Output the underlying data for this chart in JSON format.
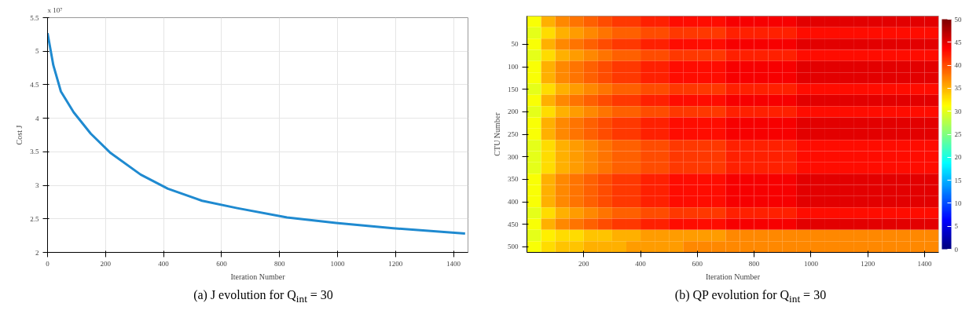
{
  "chart_data": [
    {
      "type": "line",
      "xlabel": "Iteration Number",
      "ylabel": "Cost J",
      "annotations": [
        "x 10⁷",
        "(a) J evolution for Q$_{int}$ = 30"
      ],
      "x": [
        0,
        20,
        46,
        90,
        149,
        218,
        321,
        415,
        533,
        654,
        826,
        995,
        1192,
        1440
      ],
      "series": [
        {
          "color": "#1f8ad0",
          "values": [
            5.27,
            4.79,
            4.4,
            4.09,
            3.77,
            3.48,
            3.16,
            2.95,
            2.77,
            2.66,
            2.52,
            2.44,
            2.36,
            2.28
          ]
        }
      ],
      "xlim": [
        0,
        1450
      ],
      "ylim": [
        2,
        5.5
      ],
      "xticks": [
        0,
        200,
        400,
        600,
        800,
        1000,
        1200,
        1400
      ],
      "yticks": [
        2,
        2.5,
        3,
        3.5,
        4,
        4.5,
        5,
        5.5
      ],
      "grid": true,
      "marker": "none",
      "line_style": "solid"
    },
    {
      "type": "heatmap",
      "xlabel": "Iteration Number",
      "ylabel": "CTU Number",
      "annotations": [
        "(b) QP evolution for Q$_{int}$ = 30"
      ],
      "x": [
        25,
        75,
        125,
        175,
        225,
        275,
        325,
        375,
        425,
        475,
        525,
        575,
        625,
        675,
        725,
        775,
        825,
        875,
        925,
        975,
        1025,
        1075,
        1125,
        1175,
        1225,
        1275,
        1325,
        1375,
        1425
      ],
      "y_categories": [
        null,
        null,
        "50",
        null,
        "100",
        null,
        "150",
        null,
        "200",
        null,
        "250",
        null,
        "300",
        null,
        "350",
        null,
        "400",
        null,
        "450",
        null,
        "500"
      ],
      "cells": [
        [
          31,
          35,
          37,
          38,
          39,
          40,
          41,
          41,
          42,
          42,
          43,
          43,
          43,
          43,
          44,
          44,
          44,
          44,
          44,
          45,
          45,
          45,
          45,
          45,
          45,
          45,
          45,
          45,
          45
        ],
        [
          30,
          33,
          35,
          36,
          37,
          38,
          39,
          39,
          40,
          40,
          41,
          41,
          41,
          41,
          42,
          42,
          42,
          42,
          42,
          43,
          43,
          43,
          43,
          43,
          43,
          43,
          43,
          43,
          43
        ],
        [
          31,
          35,
          37,
          38,
          39,
          40,
          41,
          41,
          42,
          42,
          43,
          43,
          43,
          43,
          44,
          44,
          44,
          44,
          44,
          45,
          45,
          45,
          45,
          45,
          45,
          45,
          45,
          45,
          45
        ],
        [
          30,
          33,
          35,
          36,
          37,
          38,
          39,
          39,
          40,
          40,
          41,
          41,
          41,
          41,
          42,
          42,
          42,
          42,
          42,
          43,
          43,
          43,
          43,
          43,
          43,
          43,
          43,
          43,
          43
        ],
        [
          31,
          35,
          37,
          38,
          39,
          40,
          41,
          41,
          42,
          42,
          43,
          43,
          43,
          43,
          44,
          44,
          44,
          44,
          44,
          45,
          45,
          45,
          45,
          45,
          45,
          45,
          45,
          45,
          45
        ],
        [
          31,
          35,
          37,
          38,
          39,
          40,
          41,
          41,
          42,
          42,
          43,
          43,
          43,
          43,
          44,
          44,
          44,
          44,
          44,
          45,
          45,
          45,
          45,
          45,
          45,
          45,
          45,
          45,
          45
        ],
        [
          30,
          33,
          35,
          36,
          37,
          38,
          39,
          39,
          40,
          40,
          41,
          41,
          41,
          41,
          42,
          42,
          42,
          42,
          42,
          43,
          43,
          43,
          43,
          43,
          43,
          43,
          43,
          43,
          43
        ],
        [
          31,
          35,
          37,
          38,
          39,
          40,
          41,
          41,
          42,
          42,
          43,
          43,
          43,
          43,
          44,
          44,
          44,
          44,
          44,
          45,
          45,
          45,
          45,
          45,
          45,
          45,
          45,
          45,
          45
        ],
        [
          30,
          33,
          35,
          36,
          37,
          38,
          39,
          39,
          40,
          40,
          41,
          41,
          41,
          41,
          42,
          42,
          42,
          42,
          42,
          43,
          43,
          43,
          43,
          43,
          43,
          43,
          43,
          43,
          43
        ],
        [
          31,
          35,
          37,
          38,
          39,
          40,
          41,
          41,
          42,
          42,
          43,
          43,
          43,
          43,
          44,
          44,
          44,
          44,
          44,
          45,
          45,
          45,
          45,
          45,
          45,
          45,
          45,
          45,
          45
        ],
        [
          31,
          35,
          37,
          38,
          39,
          40,
          41,
          41,
          42,
          42,
          43,
          43,
          43,
          43,
          44,
          44,
          44,
          44,
          44,
          45,
          45,
          45,
          45,
          45,
          45,
          45,
          45,
          45,
          45
        ],
        [
          30,
          33,
          35,
          36,
          37,
          38,
          39,
          39,
          40,
          40,
          41,
          41,
          41,
          41,
          42,
          42,
          42,
          42,
          42,
          43,
          43,
          43,
          43,
          43,
          43,
          43,
          43,
          43,
          43
        ],
        [
          30,
          33,
          35,
          36,
          37,
          38,
          39,
          39,
          40,
          40,
          41,
          41,
          41,
          41,
          42,
          42,
          42,
          42,
          42,
          43,
          43,
          43,
          43,
          43,
          43,
          43,
          43,
          43,
          43
        ],
        [
          30,
          33,
          35,
          36,
          37,
          38,
          39,
          39,
          40,
          40,
          41,
          41,
          41,
          41,
          42,
          42,
          42,
          42,
          42,
          43,
          43,
          43,
          43,
          43,
          43,
          43,
          43,
          43,
          43
        ],
        [
          31,
          35,
          37,
          38,
          39,
          40,
          41,
          41,
          42,
          42,
          43,
          43,
          43,
          43,
          44,
          44,
          44,
          44,
          44,
          45,
          45,
          45,
          45,
          45,
          45,
          45,
          45,
          45,
          45
        ],
        [
          31,
          35,
          37,
          38,
          39,
          40,
          41,
          41,
          42,
          42,
          43,
          43,
          43,
          43,
          44,
          44,
          44,
          44,
          44,
          45,
          45,
          45,
          45,
          45,
          45,
          45,
          45,
          45,
          45
        ],
        [
          31,
          35,
          37,
          38,
          39,
          40,
          41,
          41,
          42,
          42,
          43,
          43,
          43,
          43,
          44,
          44,
          44,
          44,
          44,
          45,
          45,
          45,
          45,
          45,
          45,
          45,
          45,
          45,
          45
        ],
        [
          30,
          33,
          35,
          36,
          37,
          38,
          39,
          39,
          40,
          40,
          41,
          41,
          41,
          41,
          42,
          42,
          42,
          42,
          42,
          43,
          43,
          43,
          43,
          43,
          43,
          43,
          43,
          43,
          43
        ],
        [
          31,
          35,
          37,
          38,
          39,
          40,
          41,
          41,
          42,
          42,
          43,
          43,
          43,
          43,
          44,
          44,
          44,
          44,
          44,
          45,
          45,
          45,
          45,
          45,
          45,
          45,
          45,
          45,
          45
        ],
        [
          30,
          32,
          33,
          33,
          34,
          34,
          35,
          35,
          36,
          36,
          36,
          36,
          36,
          36,
          37,
          37,
          37,
          37,
          37,
          37,
          37,
          37,
          37,
          37,
          37,
          37,
          37,
          37,
          37
        ],
        [
          31,
          33,
          34,
          34,
          35,
          35,
          35,
          36,
          36,
          36,
          36,
          37,
          37,
          37,
          37,
          37,
          37,
          37,
          37,
          37,
          37,
          37,
          37,
          37,
          37,
          37,
          37,
          37,
          37
        ]
      ],
      "xlim": [
        0,
        1450
      ],
      "xticks": [
        200,
        400,
        600,
        800,
        1000,
        1200,
        1400
      ],
      "clim": [
        0,
        50
      ],
      "cticks": [
        0,
        5,
        10,
        15,
        20,
        25,
        30,
        35,
        40,
        45,
        50
      ],
      "grid": false
    }
  ]
}
